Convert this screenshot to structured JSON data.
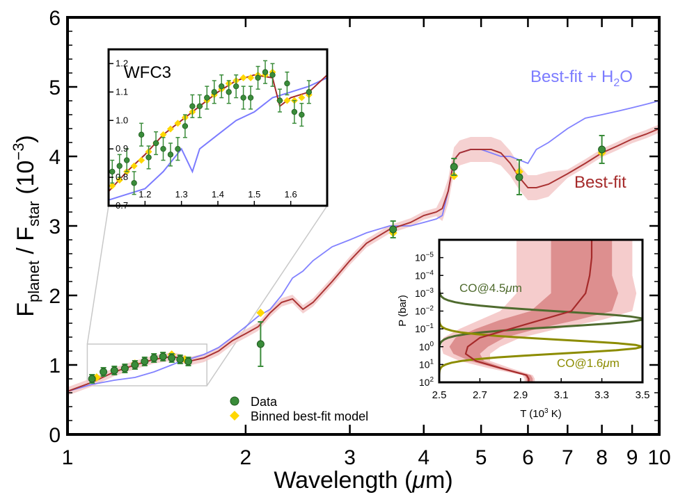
{
  "chart_data": [
    {
      "type": "line",
      "panel": "main",
      "xlabel_prefix": "Wavelength (",
      "xlabel_mu": "μ",
      "xlabel_suffix": "m)",
      "ylabel_F": "F",
      "ylabel_sub1": "planet",
      "ylabel_mid": " / F",
      "ylabel_sub2": "star",
      "ylabel_tail": " (10",
      "ylabel_exp": "−3",
      "ylabel_close": ")",
      "xscale": "log",
      "xlim": [
        1,
        10
      ],
      "ylim": [
        0,
        6
      ],
      "x_ticks": [
        1,
        2,
        3,
        4,
        5,
        6,
        7,
        8,
        9,
        10
      ],
      "x_tick_labels": [
        "1",
        "2",
        "3",
        "4",
        "5",
        "6",
        "7",
        "8",
        "9",
        "10"
      ],
      "y_ticks": [
        0,
        1,
        2,
        3,
        4,
        5,
        6
      ],
      "y_tick_labels": [
        "0",
        "1",
        "2",
        "3",
        "4",
        "5",
        "6"
      ],
      "series": [
        {
          "name": "Best-fit",
          "color": "#a52a2a",
          "x": [
            1.0,
            1.1,
            1.2,
            1.3,
            1.4,
            1.5,
            1.55,
            1.6,
            1.7,
            1.8,
            1.9,
            2.0,
            2.1,
            2.2,
            2.3,
            2.4,
            2.5,
            2.6,
            2.8,
            3.0,
            3.2,
            3.5,
            3.8,
            4.0,
            4.2,
            4.3,
            4.4,
            4.5,
            4.6,
            4.8,
            5.0,
            5.2,
            5.4,
            5.6,
            5.8,
            6.0,
            6.2,
            6.5,
            7.0,
            7.5,
            8.0,
            8.5,
            9.0,
            9.5,
            10.0
          ],
          "y": [
            0.62,
            0.75,
            0.9,
            1.0,
            1.08,
            1.12,
            1.1,
            1.05,
            1.1,
            1.2,
            1.35,
            1.45,
            1.55,
            1.75,
            1.9,
            1.95,
            1.8,
            1.9,
            2.2,
            2.5,
            2.75,
            2.95,
            3.05,
            3.15,
            3.2,
            3.25,
            3.5,
            3.95,
            4.05,
            4.1,
            4.1,
            4.1,
            4.05,
            3.9,
            3.7,
            3.55,
            3.55,
            3.6,
            3.75,
            3.9,
            4.05,
            4.15,
            4.25,
            4.32,
            4.4
          ]
        },
        {
          "name": "Best-fit + H₂O",
          "color": "#7b7bff",
          "x": [
            1.0,
            1.1,
            1.2,
            1.3,
            1.4,
            1.5,
            1.55,
            1.6,
            1.7,
            1.8,
            1.9,
            2.0,
            2.1,
            2.2,
            2.3,
            2.4,
            2.5,
            2.6,
            2.8,
            3.0,
            3.2,
            3.5,
            3.8,
            4.0,
            4.2,
            4.3,
            4.4,
            4.5,
            4.6,
            4.8,
            5.0,
            5.2,
            5.4,
            5.6,
            5.8,
            6.0,
            6.2,
            6.5,
            7.0,
            7.5,
            8.0,
            8.5,
            9.0,
            9.5,
            10.0
          ],
          "y": [
            0.62,
            0.72,
            0.78,
            0.82,
            0.9,
            1.0,
            1.05,
            1.08,
            1.15,
            1.25,
            1.4,
            1.55,
            1.7,
            1.8,
            2.0,
            2.25,
            2.35,
            2.5,
            2.7,
            2.8,
            2.9,
            3.0,
            3.0,
            3.05,
            3.1,
            3.15,
            3.5,
            3.95,
            4.05,
            4.1,
            4.1,
            4.05,
            4.0,
            4.0,
            3.95,
            3.9,
            4.1,
            4.2,
            4.4,
            4.55,
            4.6,
            4.65,
            4.7,
            4.75,
            4.8
          ]
        }
      ],
      "data_points": {
        "name": "Data",
        "color": "#3a8c3a",
        "x": [
          1.1,
          1.15,
          1.2,
          1.25,
          1.3,
          1.35,
          1.4,
          1.45,
          1.5,
          1.55,
          1.6,
          2.12,
          3.55,
          4.5,
          5.8,
          8.0
        ],
        "y": [
          0.8,
          0.9,
          0.92,
          0.95,
          1.0,
          1.05,
          1.1,
          1.12,
          1.1,
          1.08,
          1.05,
          1.3,
          2.95,
          3.85,
          3.7,
          4.1
        ],
        "yerr": [
          0.06,
          0.06,
          0.06,
          0.06,
          0.06,
          0.06,
          0.06,
          0.06,
          0.06,
          0.06,
          0.06,
          0.32,
          0.12,
          0.12,
          0.25,
          0.2
        ]
      },
      "binned_model": {
        "name": "Binned best-fit model",
        "color": "#ffd700",
        "x": [
          1.12,
          1.2,
          1.3,
          1.4,
          1.5,
          1.58,
          2.12,
          3.55,
          4.5,
          5.8,
          8.0
        ],
        "y": [
          0.82,
          0.92,
          1.02,
          1.1,
          1.15,
          1.08,
          1.75,
          2.9,
          3.72,
          3.78,
          4.05
        ]
      },
      "annotations": {
        "best_fit_label": "Best-fit",
        "best_fit_h2o_label_pre": "Best-fit + H",
        "best_fit_h2o_label_sub": "2",
        "best_fit_h2o_label_post": "O"
      },
      "legend": {
        "placement": "bottom-center",
        "entries": [
          "Data",
          "Binned best-fit model"
        ]
      },
      "zoom_box": {
        "x": [
          1.08,
          1.72
        ],
        "y": [
          0.7,
          1.3
        ]
      }
    },
    {
      "type": "line",
      "panel": "inset-wfc3",
      "title": "WFC3",
      "xlim": [
        1.1,
        1.7
      ],
      "ylim": [
        0.7,
        1.25
      ],
      "x_ticks": [
        1.2,
        1.3,
        1.4,
        1.5,
        1.6
      ],
      "x_tick_labels": [
        "1.2",
        "1.3",
        "1.4",
        "1.5",
        "1.6"
      ],
      "y_ticks": [
        0.7,
        0.8,
        0.9,
        1.0,
        1.1,
        1.2
      ],
      "y_tick_labels": [
        "0.7",
        "0.8",
        "0.9",
        "1.0",
        "1.1",
        "1.2"
      ],
      "series": [
        {
          "name": "Best-fit",
          "color": "#a52a2a",
          "x": [
            1.1,
            1.15,
            1.2,
            1.25,
            1.3,
            1.35,
            1.4,
            1.45,
            1.5,
            1.55,
            1.57,
            1.6,
            1.65,
            1.7
          ],
          "y": [
            0.75,
            0.82,
            0.88,
            0.95,
            1.0,
            1.05,
            1.1,
            1.14,
            1.16,
            1.15,
            1.05,
            1.08,
            1.1,
            1.16
          ]
        },
        {
          "name": "Best-fit + H₂O",
          "color": "#7b7bff",
          "x": [
            1.1,
            1.15,
            1.2,
            1.25,
            1.3,
            1.33,
            1.35,
            1.4,
            1.45,
            1.5,
            1.55,
            1.6,
            1.65,
            1.7
          ],
          "y": [
            0.72,
            0.74,
            0.76,
            0.82,
            0.9,
            0.82,
            0.9,
            0.95,
            1.0,
            1.03,
            1.08,
            1.1,
            1.12,
            1.15
          ]
        }
      ],
      "data_points": {
        "x": [
          1.11,
          1.13,
          1.15,
          1.17,
          1.19,
          1.21,
          1.23,
          1.25,
          1.27,
          1.29,
          1.31,
          1.33,
          1.35,
          1.37,
          1.39,
          1.41,
          1.43,
          1.45,
          1.47,
          1.49,
          1.51,
          1.53,
          1.55,
          1.57,
          1.59,
          1.61,
          1.63,
          1.65
        ],
        "y": [
          0.82,
          0.84,
          0.86,
          0.78,
          0.95,
          0.87,
          0.92,
          0.9,
          0.88,
          0.9,
          0.98,
          1.05,
          1.05,
          1.08,
          1.1,
          1.12,
          1.1,
          1.12,
          1.08,
          1.08,
          1.15,
          1.17,
          1.16,
          1.07,
          1.13,
          1.03,
          1.02,
          1.1
        ],
        "yerr": 0.04
      },
      "binned_model": {
        "x": [
          1.11,
          1.13,
          1.15,
          1.17,
          1.19,
          1.21,
          1.23,
          1.25,
          1.27,
          1.29,
          1.31,
          1.33,
          1.35,
          1.37,
          1.39,
          1.41,
          1.43,
          1.45,
          1.47,
          1.49,
          1.51,
          1.53,
          1.55,
          1.57,
          1.59,
          1.61,
          1.63,
          1.65
        ],
        "y": [
          0.77,
          0.79,
          0.82,
          0.84,
          0.86,
          0.89,
          0.92,
          0.95,
          0.97,
          0.99,
          1.01,
          1.03,
          1.05,
          1.07,
          1.09,
          1.11,
          1.13,
          1.14,
          1.15,
          1.15,
          1.16,
          1.16,
          1.17,
          1.07,
          1.07,
          1.07,
          1.08,
          1.09
        ]
      }
    },
    {
      "type": "line",
      "panel": "inset-pt",
      "xlabel_pre": "T (10",
      "xlabel_exp": "3",
      "xlabel_post": " K)",
      "ylabel": "P (bar)",
      "xlim": [
        2.5,
        3.5
      ],
      "ylim_log": [
        2,
        -6
      ],
      "yscale": "log",
      "x_ticks": [
        2.5,
        2.7,
        2.9,
        3.1,
        3.3,
        3.5
      ],
      "x_tick_labels": [
        "2.5",
        "2.7",
        "2.9",
        "3.1",
        "3.3",
        "3.5"
      ],
      "y_ticks": [
        -5,
        -4,
        -3,
        -2,
        -1,
        0,
        1,
        2
      ],
      "y_tick_labels": [
        {
          "base": "10",
          "exp": "−5"
        },
        {
          "base": "10",
          "exp": "−4"
        },
        {
          "base": "10",
          "exp": "−3"
        },
        {
          "base": "10",
          "exp": "−2"
        },
        {
          "base": "10",
          "exp": "−1"
        },
        {
          "base": "10",
          "exp": "0"
        },
        {
          "base": "10",
          "exp": "1"
        },
        {
          "base": "10",
          "exp": "2"
        }
      ],
      "tp_profile": {
        "color": "#a52a2a",
        "T": [
          3.25,
          3.25,
          3.24,
          3.22,
          3.15,
          3.0,
          2.85,
          2.7,
          2.64,
          2.63,
          2.68,
          2.8,
          2.93,
          2.94,
          2.94
        ],
        "logP": [
          -6.0,
          -5.0,
          -4.0,
          -3.0,
          -2.0,
          -1.5,
          -1.0,
          -0.5,
          0.0,
          0.4,
          0.8,
          1.2,
          1.6,
          1.8,
          2.0
        ]
      },
      "tp_band_inner": {
        "color": "#dd8f8f",
        "T_lo": [
          3.05,
          3.05,
          3.05,
          3.05,
          2.95,
          2.8,
          2.68,
          2.58,
          2.55,
          2.57,
          2.65,
          2.78,
          2.92,
          2.93,
          2.93
        ],
        "T_hi": [
          3.35,
          3.35,
          3.35,
          3.38,
          3.35,
          3.18,
          2.98,
          2.82,
          2.74,
          2.7,
          2.72,
          2.82,
          2.95,
          2.96,
          2.96
        ],
        "logP": [
          -6.0,
          -5.0,
          -4.0,
          -3.0,
          -2.0,
          -1.5,
          -1.0,
          -0.5,
          0.0,
          0.4,
          0.8,
          1.2,
          1.6,
          1.8,
          2.0
        ]
      },
      "tp_band_outer": {
        "color": "#f5cccc",
        "T_lo": [
          2.88,
          2.88,
          2.88,
          2.88,
          2.8,
          2.7,
          2.6,
          2.52,
          2.51,
          2.52,
          2.6,
          2.74,
          2.91,
          2.92,
          2.92
        ],
        "T_hi": [
          3.45,
          3.45,
          3.45,
          3.47,
          3.45,
          3.3,
          3.08,
          2.9,
          2.8,
          2.75,
          2.75,
          2.85,
          2.96,
          2.97,
          2.97
        ],
        "logP": [
          -6.0,
          -5.0,
          -4.0,
          -3.0,
          -2.0,
          -1.5,
          -1.0,
          -0.5,
          0.0,
          0.4,
          0.8,
          1.2,
          1.6,
          1.8,
          2.0
        ]
      },
      "contribution_functions": [
        {
          "name": "CO@4.5",
          "label_pre": "CO@4.5",
          "label_mu": "μ",
          "label_post": "m",
          "color": "#4f6b2e",
          "peak_logP": -1.55,
          "width": 0.42
        },
        {
          "name": "CO@1.6",
          "label_pre": "CO@1.6",
          "label_mu": "μ",
          "label_post": "m",
          "color": "#8c8c00",
          "peak_logP": 0.0,
          "width": 0.38
        }
      ]
    }
  ]
}
